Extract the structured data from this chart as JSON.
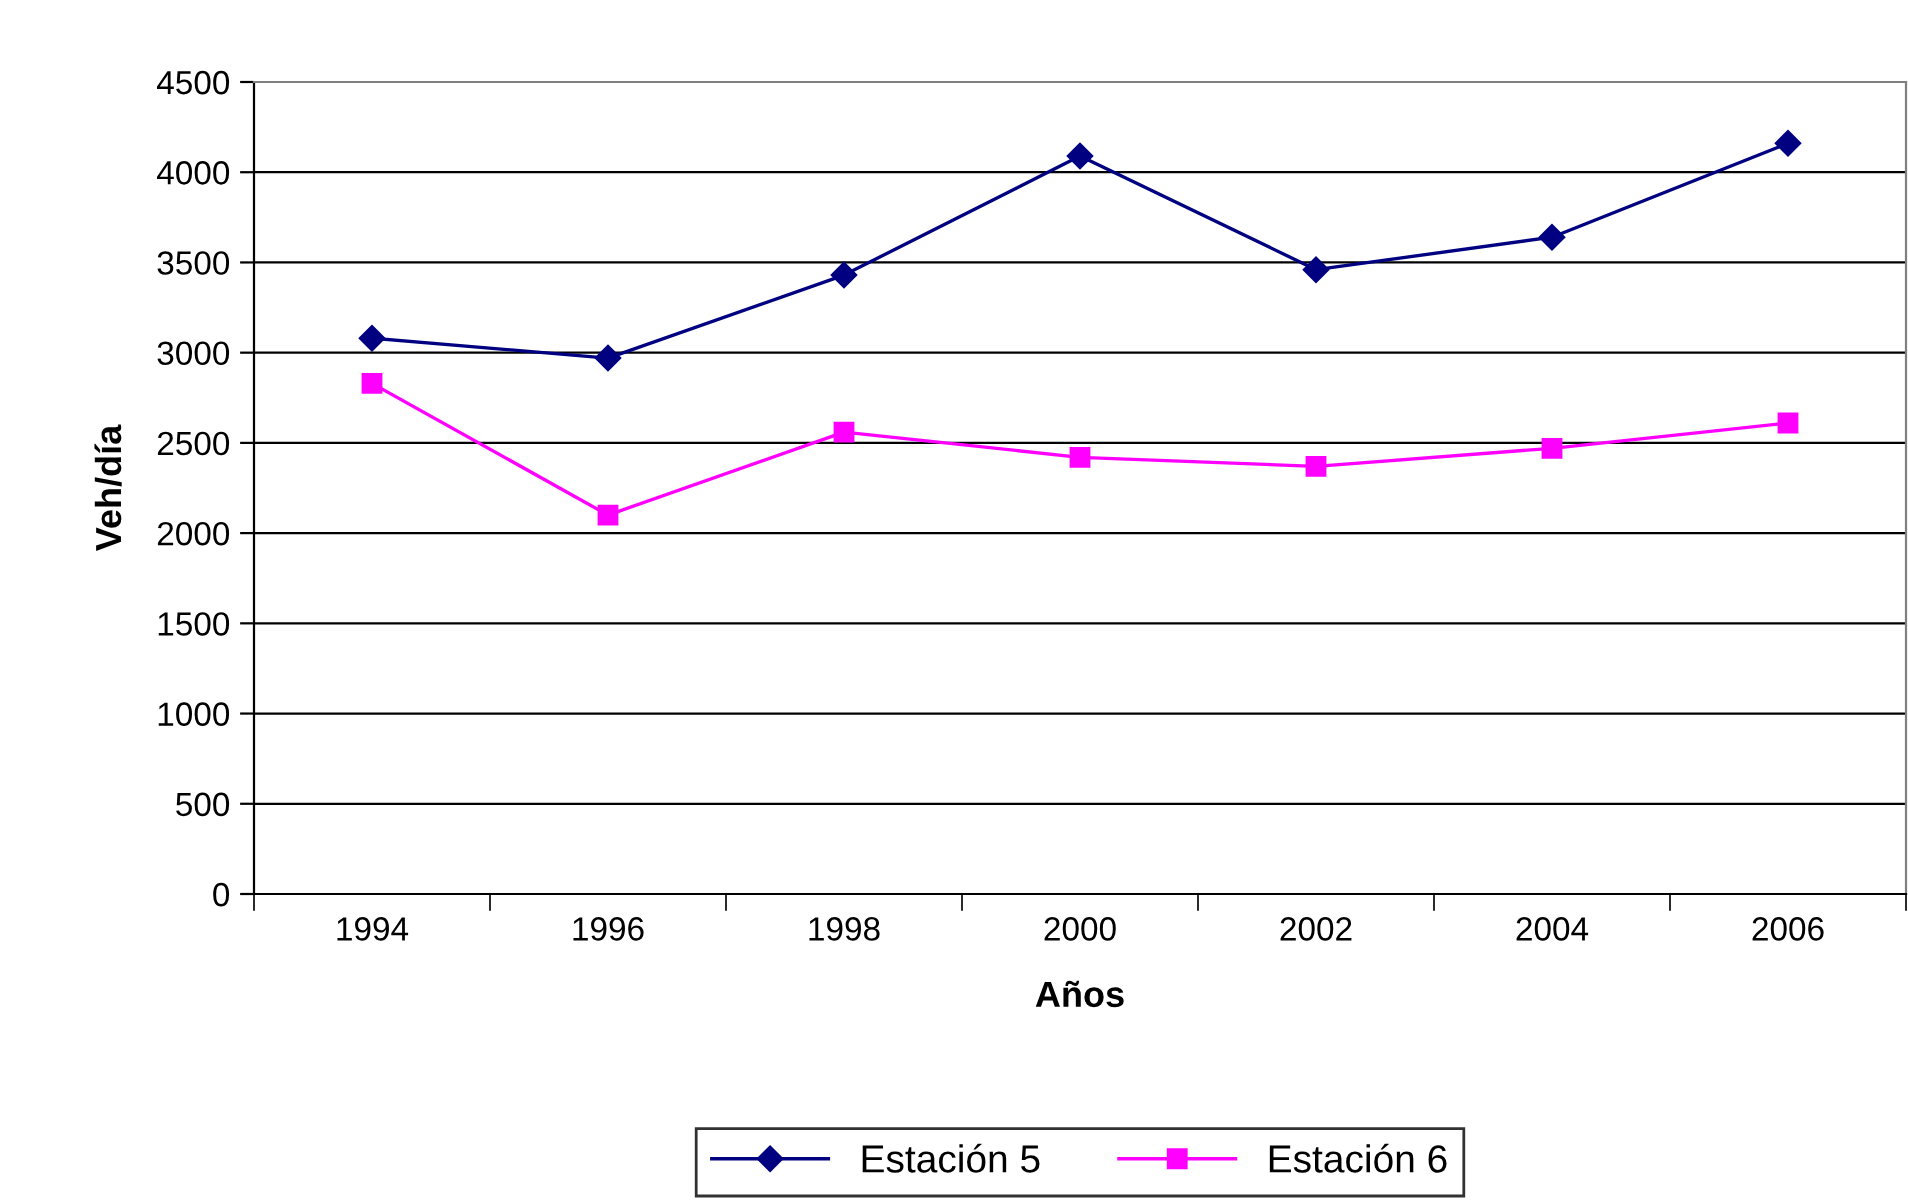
{
  "chart_data": {
    "type": "line",
    "xlabel": "Años",
    "ylabel": "Veh/día",
    "categories": [
      "1994",
      "1996",
      "1998",
      "2000",
      "2002",
      "2004",
      "2006"
    ],
    "series": [
      {
        "name": "Estación 5",
        "color": "#000080",
        "marker": "diamond",
        "values": [
          3080,
          2970,
          3430,
          4090,
          3460,
          3640,
          4160
        ]
      },
      {
        "name": "Estación 6",
        "color": "#ff00ff",
        "marker": "square",
        "values": [
          2830,
          2100,
          2560,
          2420,
          2370,
          2470,
          2610
        ]
      }
    ],
    "ylim": [
      0,
      4500
    ],
    "yticks": [
      0,
      500,
      1000,
      1500,
      2000,
      2500,
      3000,
      3500,
      4000,
      4500
    ],
    "grid": "y",
    "legend": "bottom",
    "line_style": "solid"
  }
}
